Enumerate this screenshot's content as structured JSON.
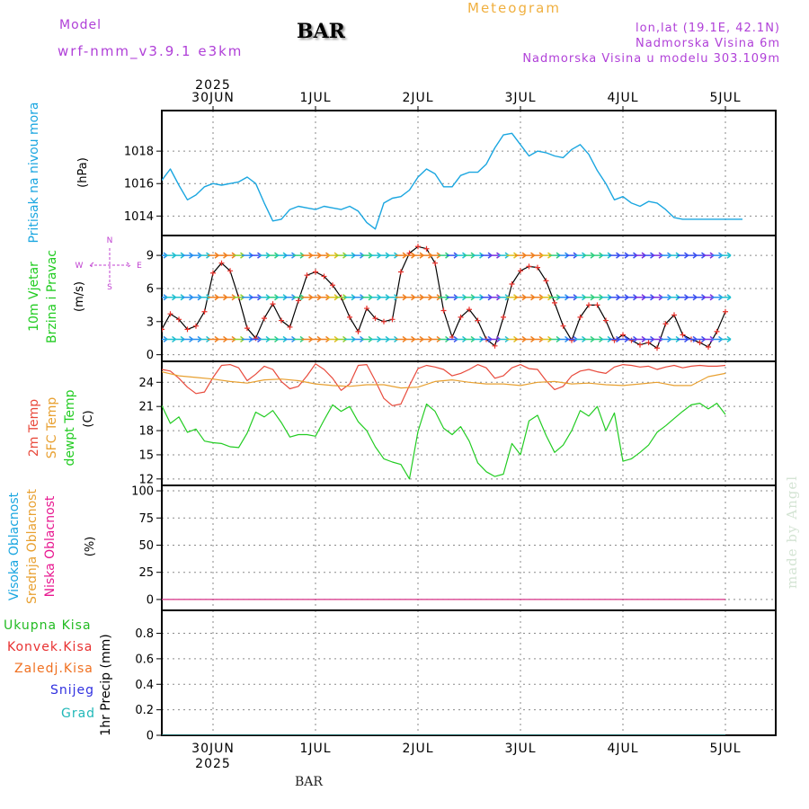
{
  "header": {
    "model_label": "Model",
    "model_name": "wrf-nmm_v3.9.1 e3km",
    "station": "BAR",
    "meteogram_label": "Meteogram",
    "lonlat": "lon,lat (19.1E, 42.1N)",
    "elevation": "Nadmorska Visina 6m",
    "model_elevation": "Nadmorska Visina u modelu 303.109m",
    "watermark": "made by Angel",
    "bottom_station": "BAR"
  },
  "time_axis": {
    "year": "2025",
    "start_hour": 0,
    "end_hour": 132,
    "day_labels": [
      {
        "label": "30JUN",
        "hour": 12
      },
      {
        "label": "1JUL",
        "hour": 36
      },
      {
        "label": "2JUL",
        "hour": 60
      },
      {
        "label": "3JUL",
        "hour": 84
      },
      {
        "label": "4JUL",
        "hour": 108
      },
      {
        "label": "5JUL",
        "hour": 132
      }
    ]
  },
  "colors": {
    "pressure": "#1aa6e0",
    "temp2m": "#e84a3c",
    "sfc_temp": "#e8a030",
    "dewpoint": "#22cc22",
    "wind_speed": "#000000",
    "wind_markers": "#e8302a",
    "compass": "#c040d0",
    "cloud_low": "#e81890",
    "cloud_mid": "#e8a030",
    "cloud_high": "#1aa6e0",
    "precip_total": "#22bb22",
    "precip_conv": "#e83030",
    "precip_frz": "#f07020",
    "precip_snow": "#3030e0",
    "precip_grad": "#20b8b8"
  },
  "chart_data": [
    {
      "type": "line",
      "name": "pressure",
      "ylabel": "Pritisak na nivou mora",
      "unit": "(hPa)",
      "ylim": [
        1012.8,
        1020.5
      ],
      "yticks": [
        1014,
        1016,
        1018
      ],
      "series": [
        {
          "name": "Pritisak na nivou mora",
          "color": "#1aa6e0",
          "x": [
            0,
            2,
            4,
            6,
            8,
            10,
            12,
            14,
            16,
            18,
            20,
            22,
            24,
            26,
            28,
            30,
            32,
            34,
            36,
            38,
            40,
            42,
            44,
            46,
            48,
            50,
            52,
            54,
            56,
            58,
            60,
            62,
            64,
            66,
            68,
            70,
            72,
            74,
            76,
            78,
            80,
            82,
            84,
            86,
            88,
            90,
            92,
            94,
            96,
            98,
            100,
            102,
            104,
            106,
            108,
            110,
            112,
            114,
            116,
            118,
            120,
            122,
            124,
            126,
            128,
            130,
            132,
            134,
            136
          ],
          "y": [
            1016.2,
            1016.9,
            1015.9,
            1015.0,
            1015.3,
            1015.8,
            1016.0,
            1015.9,
            1016.0,
            1016.1,
            1016.4,
            1016.0,
            1014.8,
            1013.7,
            1013.8,
            1014.4,
            1014.6,
            1014.5,
            1014.4,
            1014.6,
            1014.5,
            1014.4,
            1014.6,
            1014.3,
            1013.6,
            1013.2,
            1014.8,
            1015.1,
            1015.2,
            1015.6,
            1016.4,
            1016.9,
            1016.6,
            1015.8,
            1015.8,
            1016.5,
            1016.7,
            1016.7,
            1017.2,
            1018.2,
            1019.0,
            1019.1,
            1018.4,
            1017.7,
            1018.0,
            1017.9,
            1017.7,
            1017.6,
            1018.1,
            1018.4,
            1017.8,
            1016.8,
            1016.0,
            1015.0,
            1015.2,
            1014.8,
            1014.6,
            1014.9,
            1014.8,
            1014.4,
            1013.9,
            1013.8,
            1013.8,
            1013.8,
            1013.8,
            1013.8,
            1013.8,
            1013.8,
            1013.8
          ]
        }
      ]
    },
    {
      "type": "line",
      "name": "wind",
      "ylabel": "10m Vjetar",
      "ylabel2": "Brzina i Pravac",
      "unit": "(m/s)",
      "ylim": [
        -0.6,
        10.8
      ],
      "yticks": [
        0,
        3,
        6,
        9
      ],
      "compass": {
        "n": "N",
        "s": "S",
        "e": "E",
        "w": "W"
      },
      "series": [
        {
          "name": "Brzina",
          "color": "#000000",
          "x": [
            0,
            2,
            4,
            6,
            8,
            10,
            12,
            14,
            16,
            18,
            20,
            22,
            24,
            26,
            28,
            30,
            32,
            34,
            36,
            38,
            40,
            42,
            44,
            46,
            48,
            50,
            52,
            54,
            56,
            58,
            60,
            62,
            64,
            66,
            68,
            70,
            72,
            74,
            76,
            78,
            80,
            82,
            84,
            86,
            88,
            90,
            92,
            94,
            96,
            98,
            100,
            102,
            104,
            106,
            108,
            110,
            112,
            114,
            116,
            118,
            120,
            122,
            124,
            126,
            128,
            130,
            132
          ],
          "y": [
            2.3,
            3.7,
            3.2,
            2.3,
            2.6,
            3.9,
            7.4,
            8.3,
            7.6,
            5.2,
            2.4,
            1.5,
            3.3,
            4.6,
            3.1,
            2.5,
            4.9,
            7.2,
            7.5,
            7.1,
            6.3,
            5.2,
            3.4,
            2.1,
            4.2,
            3.3,
            3.0,
            3.2,
            7.5,
            9.2,
            9.8,
            9.6,
            8.3,
            4.0,
            1.6,
            3.4,
            4.1,
            3.1,
            1.4,
            0.8,
            3.4,
            6.4,
            7.6,
            8.0,
            7.9,
            6.7,
            4.7,
            2.6,
            1.3,
            3.4,
            4.5,
            4.5,
            3.1,
            1.3,
            1.8,
            1.3,
            0.9,
            1.1,
            0.6,
            2.8,
            3.6,
            1.8,
            1.4,
            1.1,
            0.7,
            2.1,
            3.9
          ]
        }
      ]
    },
    {
      "type": "line",
      "name": "temperature",
      "ylabel": "2m Temp",
      "ylabel2": "SFC Temp",
      "ylabel3": "dewpt Temp",
      "unit": "(C)",
      "ylim": [
        11.2,
        26.6
      ],
      "yticks": [
        12,
        15,
        18,
        21,
        24
      ],
      "series": [
        {
          "name": "2m Temp",
          "color": "#e84a3c",
          "x": [
            0,
            2,
            4,
            6,
            8,
            10,
            12,
            14,
            16,
            18,
            20,
            22,
            24,
            26,
            28,
            30,
            32,
            34,
            36,
            38,
            40,
            42,
            44,
            46,
            48,
            50,
            52,
            54,
            56,
            58,
            60,
            62,
            64,
            66,
            68,
            70,
            72,
            74,
            76,
            78,
            80,
            82,
            84,
            86,
            88,
            90,
            92,
            94,
            96,
            98,
            100,
            102,
            104,
            106,
            108,
            110,
            112,
            114,
            116,
            118,
            120,
            122,
            124,
            126,
            128,
            130,
            132
          ],
          "y": [
            25.6,
            25.4,
            24.5,
            23.4,
            22.6,
            22.8,
            24.6,
            26.1,
            26.2,
            25.8,
            24.2,
            25.0,
            26.0,
            25.6,
            24.1,
            23.2,
            23.5,
            24.8,
            26.3,
            25.6,
            24.5,
            23.0,
            23.8,
            26.1,
            26.2,
            24.2,
            22.0,
            21.1,
            21.3,
            23.6,
            25.7,
            26.1,
            25.9,
            25.6,
            24.8,
            25.1,
            25.6,
            26.2,
            25.8,
            24.5,
            24.8,
            25.8,
            26.2,
            25.7,
            25.6,
            24.2,
            23.1,
            23.5,
            24.8,
            25.4,
            25.6,
            25.3,
            25.1,
            25.9,
            26.2,
            26.1,
            25.9,
            26.0,
            25.6,
            25.9,
            26.1,
            25.8,
            26.0,
            26.1,
            26.0,
            26.0,
            26.1
          ]
        },
        {
          "name": "SFC Temp",
          "color": "#e8a030",
          "x": [
            0,
            4,
            8,
            12,
            16,
            20,
            24,
            28,
            32,
            36,
            40,
            44,
            48,
            52,
            56,
            60,
            64,
            68,
            72,
            76,
            80,
            84,
            88,
            92,
            96,
            100,
            104,
            108,
            112,
            116,
            120,
            124,
            128,
            132
          ],
          "y": [
            25.3,
            24.8,
            24.6,
            24.4,
            24.1,
            23.9,
            24.3,
            24.4,
            24.2,
            23.8,
            23.6,
            23.5,
            23.7,
            23.7,
            23.3,
            23.4,
            24.1,
            24.3,
            24.0,
            23.8,
            23.8,
            23.6,
            24.0,
            24.1,
            23.8,
            23.9,
            23.7,
            23.6,
            23.8,
            24.0,
            23.6,
            23.6,
            24.7,
            25.1
          ]
        },
        {
          "name": "dewpt Temp",
          "color": "#22cc22",
          "x": [
            0,
            2,
            4,
            6,
            8,
            10,
            12,
            14,
            16,
            18,
            20,
            22,
            24,
            26,
            28,
            30,
            32,
            34,
            36,
            38,
            40,
            42,
            44,
            46,
            48,
            50,
            52,
            54,
            56,
            58,
            60,
            62,
            64,
            66,
            68,
            70,
            72,
            74,
            76,
            78,
            80,
            82,
            84,
            86,
            88,
            90,
            92,
            94,
            96,
            98,
            100,
            102,
            104,
            106,
            108,
            110,
            112,
            114,
            116,
            118,
            120,
            122,
            124,
            126,
            128,
            130,
            132
          ],
          "y": [
            21.1,
            18.9,
            19.7,
            17.8,
            18.2,
            16.7,
            16.5,
            16.4,
            16.0,
            15.9,
            17.7,
            20.3,
            19.7,
            20.5,
            19.0,
            17.2,
            17.5,
            17.5,
            17.3,
            19.3,
            21.2,
            20.4,
            21.0,
            19.1,
            18.0,
            16.0,
            14.5,
            14.1,
            13.8,
            12.0,
            17.9,
            21.3,
            20.4,
            18.3,
            17.5,
            18.5,
            16.7,
            14.0,
            12.9,
            12.3,
            12.6,
            16.4,
            15.0,
            19.2,
            19.9,
            17.4,
            15.3,
            16.2,
            18.0,
            20.5,
            19.8,
            21.0,
            18.0,
            20.2,
            14.2,
            14.5,
            15.3,
            16.2,
            17.8,
            18.6,
            19.5,
            20.4,
            21.2,
            21.4,
            20.7,
            21.4,
            20.0
          ]
        }
      ]
    },
    {
      "type": "line",
      "name": "clouds",
      "ylabel": "Visoka Oblacnost",
      "ylabel2": "Srednja Oblacnost",
      "ylabel3": "Niska Oblacnost",
      "unit": "(%)",
      "ylim": [
        -10,
        105
      ],
      "yticks": [
        0,
        25,
        50,
        75,
        100
      ],
      "series": [
        {
          "name": "Visoka Oblacnost",
          "color": "#1aa6e0",
          "x": [
            0,
            132
          ],
          "y": [
            0,
            0
          ]
        },
        {
          "name": "Srednja Oblacnost",
          "color": "#e8a030",
          "x": [
            0,
            132
          ],
          "y": [
            0,
            0
          ]
        },
        {
          "name": "Niska Oblacnost",
          "color": "#e81890",
          "x": [
            0,
            132
          ],
          "y": [
            0,
            0
          ]
        }
      ]
    },
    {
      "type": "line",
      "name": "precipitation",
      "ylabel": "1hr Precip",
      "unit": "(mm)",
      "ylim": [
        0,
        0.98
      ],
      "yticks": [
        0,
        0.2,
        0.4,
        0.6,
        0.8
      ],
      "series": [
        {
          "name": "Ukupna Kisa",
          "color": "#22bb22",
          "x": [
            0,
            132
          ],
          "y": [
            0,
            0
          ]
        },
        {
          "name": "Konvek.Kisa",
          "color": "#e83030",
          "x": [
            0,
            132
          ],
          "y": [
            0,
            0
          ]
        },
        {
          "name": "Zaledj.Kisa",
          "color": "#f07020",
          "x": [
            0,
            132
          ],
          "y": [
            0,
            0
          ]
        },
        {
          "name": "Snijeg",
          "color": "#3030e0",
          "x": [
            0,
            132
          ],
          "y": [
            0,
            0
          ]
        },
        {
          "name": "Grad",
          "color": "#20b8b8",
          "x": [
            0,
            132
          ],
          "y": [
            0,
            0
          ]
        }
      ]
    }
  ]
}
